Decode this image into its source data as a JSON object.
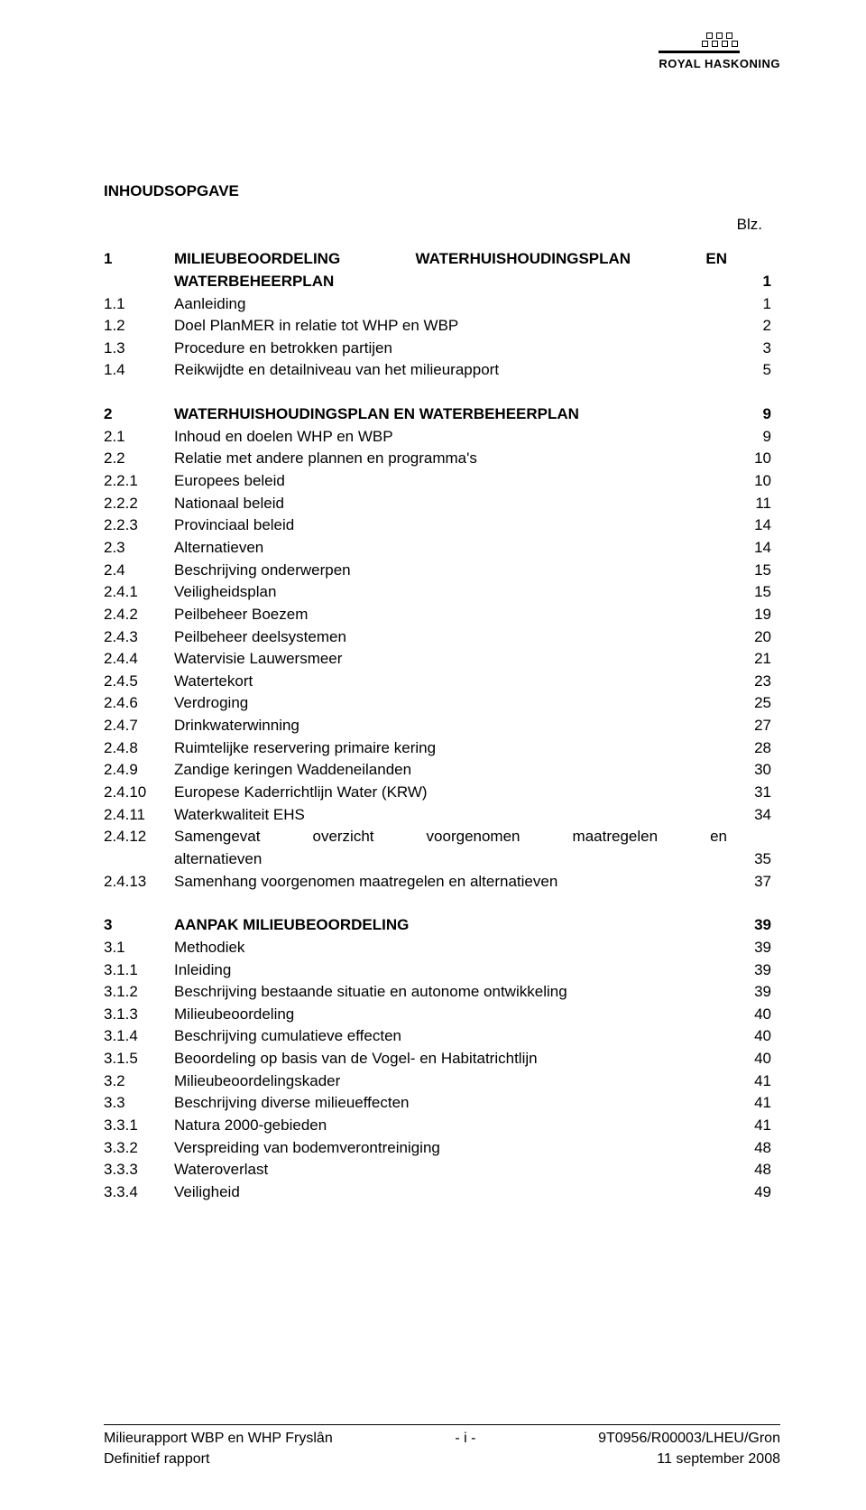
{
  "logo": {
    "brand": "ROYAL HASKONING"
  },
  "title": "INHOUDSOPGAVE",
  "blz_label": "Blz.",
  "sections": [
    {
      "heading": {
        "num": "1",
        "label_parts": [
          "MILIEUBEOORDELING",
          "WATERHUISHOUDINGSPLAN",
          "EN"
        ],
        "label2": "WATERBEHEERPLAN",
        "page": "1"
      },
      "rows": [
        {
          "num": "1.1",
          "label": "Aanleiding",
          "page": "1"
        },
        {
          "num": "1.2",
          "label": "Doel PlanMER in relatie tot WHP en WBP",
          "page": "2"
        },
        {
          "num": "1.3",
          "label": "Procedure en betrokken partijen",
          "page": "3"
        },
        {
          "num": "1.4",
          "label": "Reikwijdte en detailniveau van het milieurapport",
          "page": "5"
        }
      ]
    },
    {
      "heading": {
        "num": "2",
        "label": "WATERHUISHOUDINGSPLAN EN WATERBEHEERPLAN",
        "page": "9"
      },
      "rows": [
        {
          "num": "2.1",
          "label": "Inhoud en doelen WHP en WBP",
          "page": "9"
        },
        {
          "num": "2.2",
          "label": "Relatie met andere plannen en programma's",
          "page": "10"
        },
        {
          "num": "2.2.1",
          "label": "Europees beleid",
          "page": "10"
        },
        {
          "num": "2.2.2",
          "label": "Nationaal beleid",
          "page": "11"
        },
        {
          "num": "2.2.3",
          "label": "Provinciaal beleid",
          "page": "14"
        },
        {
          "num": "2.3",
          "label": "Alternatieven",
          "page": "14"
        },
        {
          "num": "2.4",
          "label": "Beschrijving onderwerpen",
          "page": "15"
        },
        {
          "num": "2.4.1",
          "label": "Veiligheidsplan",
          "page": "15"
        },
        {
          "num": "2.4.2",
          "label": "Peilbeheer Boezem",
          "page": "19"
        },
        {
          "num": "2.4.3",
          "label": "Peilbeheer deelsystemen",
          "page": "20"
        },
        {
          "num": "2.4.4",
          "label": "Watervisie Lauwersmeer",
          "page": "21"
        },
        {
          "num": "2.4.5",
          "label": "Watertekort",
          "page": "23"
        },
        {
          "num": "2.4.6",
          "label": "Verdroging",
          "page": "25"
        },
        {
          "num": "2.4.7",
          "label": "Drinkwaterwinning",
          "page": "27"
        },
        {
          "num": "2.4.8",
          "label": "Ruimtelijke reservering primaire kering",
          "page": "28"
        },
        {
          "num": "2.4.9",
          "label": "Zandige keringen Waddeneilanden",
          "page": "30"
        },
        {
          "num": "2.4.10",
          "label": "Europese Kaderrichtlijn Water (KRW)",
          "page": "31"
        },
        {
          "num": "2.4.11",
          "label": "Waterkwaliteit EHS",
          "page": "34"
        },
        {
          "num": "2.4.12",
          "label_parts": [
            "Samengevat",
            "overzicht",
            "voorgenomen",
            "maatregelen",
            "en"
          ],
          "label2": "alternatieven",
          "page": "35"
        },
        {
          "num": "2.4.13",
          "label": "Samenhang voorgenomen maatregelen en alternatieven",
          "page": "37"
        }
      ]
    },
    {
      "heading": {
        "num": "3",
        "label": "AANPAK MILIEUBEOORDELING",
        "page": "39"
      },
      "rows": [
        {
          "num": "3.1",
          "label": "Methodiek",
          "page": "39"
        },
        {
          "num": "3.1.1",
          "label": "Inleiding",
          "page": "39"
        },
        {
          "num": "3.1.2",
          "label": "Beschrijving bestaande situatie en autonome ontwikkeling",
          "page": "39"
        },
        {
          "num": "3.1.3",
          "label": "Milieubeoordeling",
          "page": "40"
        },
        {
          "num": "3.1.4",
          "label": "Beschrijving cumulatieve effecten",
          "page": "40"
        },
        {
          "num": "3.1.5",
          "label": "Beoordeling op basis van de Vogel- en Habitatrichtlijn",
          "page": "40"
        },
        {
          "num": "3.2",
          "label": "Milieubeoordelingskader",
          "page": "41"
        },
        {
          "num": "3.3",
          "label": "Beschrijving diverse milieueffecten",
          "page": "41"
        },
        {
          "num": "3.3.1",
          "label": "Natura 2000-gebieden",
          "page": "41"
        },
        {
          "num": "3.3.2",
          "label": "Verspreiding van bodemverontreiniging",
          "page": "48"
        },
        {
          "num": "3.3.3",
          "label": "Wateroverlast",
          "page": "48"
        },
        {
          "num": "3.3.4",
          "label": "Veiligheid",
          "page": "49"
        }
      ]
    }
  ],
  "footer": {
    "left1": "Milieurapport WBP en WHP Fryslân",
    "left2": "Definitief rapport",
    "center": "- i -",
    "right1": "9T0956/R00003/LHEU/Gron",
    "right2": "11 september 2008"
  }
}
